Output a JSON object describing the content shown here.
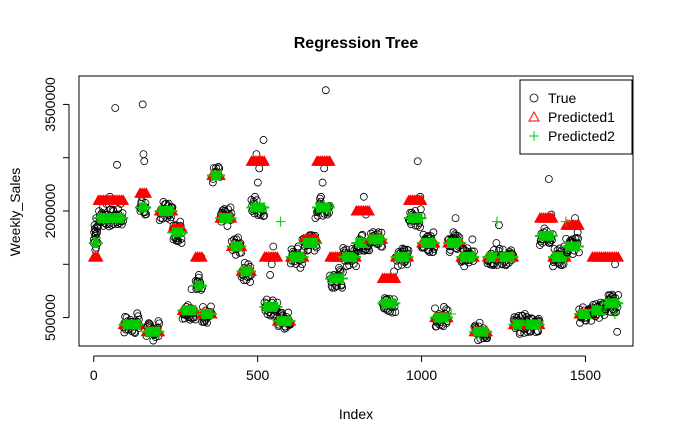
{
  "chart_data": {
    "type": "scatter",
    "title": "Regression Tree",
    "xlabel": "Index",
    "ylabel": "Weekly_Sales",
    "xlim": [
      -45,
      1645
    ],
    "ylim": [
      100000,
      3900000
    ],
    "x_ticks": [
      0,
      500,
      1000,
      1500
    ],
    "x_tick_labels": [
      "0",
      "500",
      "1000",
      "1500"
    ],
    "y_ticks": [
      500000,
      2000000,
      3500000
    ],
    "y_tick_labels": [
      "500000",
      "2000000",
      "3500000"
    ],
    "y_minor_ticks": [
      1250000,
      2750000
    ],
    "grid": false,
    "legend": {
      "position": "top-right",
      "entries": [
        {
          "label": "True",
          "symbol": "circle",
          "color": "#000000"
        },
        {
          "label": "Predicted1",
          "symbol": "triangle",
          "color": "#ff0000"
        },
        {
          "label": "Predicted2",
          "symbol": "plus",
          "color": "#00cc00"
        }
      ]
    },
    "segments": [
      {
        "x": [
          0,
          12
        ],
        "pred1": 1350000,
        "pred2": 1550000,
        "true": [
          1600000,
          1700000,
          1800000,
          1750000,
          1650000,
          1720000,
          1680000,
          1900000,
          1620000,
          1780000,
          1700000,
          1760000
        ]
      },
      {
        "x": [
          14,
          90
        ],
        "pred1": 2150000,
        "pred2": 1900000,
        "true": [
          1850000,
          1950000,
          2050000,
          1900000,
          2100000,
          1950000,
          2200000,
          1880000,
          2000000,
          3450000,
          2650000,
          1950000,
          2100000,
          1900000
        ]
      },
      {
        "x": [
          91,
          140
        ],
        "pred1": 400000,
        "pred2": 400000,
        "true": [
          420000,
          380000,
          450000,
          430000,
          390000,
          440000,
          410000,
          400000,
          560000,
          470000
        ]
      },
      {
        "x": [
          141,
          160
        ],
        "pred1": 2250000,
        "pred2": 2050000,
        "true": [
          2000000,
          2100000,
          2200000,
          3500000,
          2800000,
          2700000,
          1950000,
          2050000
        ]
      },
      {
        "x": [
          161,
          200
        ],
        "pred1": 300000,
        "pred2": 300000,
        "true": [
          280000,
          310000,
          320000,
          290000,
          330000,
          300000,
          450000
        ]
      },
      {
        "x": [
          201,
          240
        ],
        "pred1": 2000000,
        "pred2": 2000000,
        "true": [
          1900000,
          2000000,
          2100000,
          1950000,
          2050000
        ]
      },
      {
        "x": [
          241,
          270
        ],
        "pred1": 1750000,
        "pred2": 1700000,
        "true": [
          1600000,
          1750000,
          1800000,
          1650000,
          1700000,
          1850000,
          1550000
        ]
      },
      {
        "x": [
          271,
          310
        ],
        "pred1": 600000,
        "pred2": 600000,
        "true": [
          550000,
          650000,
          600000,
          900000,
          500000
        ]
      },
      {
        "x": [
          311,
          330
        ],
        "pred1": 1350000,
        "pred2": 950000,
        "true": [
          900000,
          1000000,
          1100000,
          950000,
          1350000
        ]
      },
      {
        "x": [
          331,
          360
        ],
        "pred1": 550000,
        "pred2": 550000,
        "true": [
          500000,
          600000,
          550000,
          580000
        ]
      },
      {
        "x": [
          361,
          385
        ],
        "pred1": 2500000,
        "pred2": 2500000,
        "true": [
          2450000,
          2550000,
          2500000,
          2600000
        ]
      },
      {
        "x": [
          386,
          420
        ],
        "pred1": 1900000,
        "pred2": 1900000,
        "true": [
          1850000,
          1950000,
          2000000,
          1880000,
          1920000,
          2050000
        ]
      },
      {
        "x": [
          421,
          450
        ],
        "pred1": 1500000,
        "pred2": 1500000,
        "true": [
          1450000,
          1550000,
          1600000,
          1480000,
          1520000
        ]
      },
      {
        "x": [
          451,
          480
        ],
        "pred1": 1150000,
        "pred2": 1150000,
        "true": [
          1100000,
          1200000,
          1150000,
          1250000,
          1000000
        ]
      },
      {
        "x": [
          481,
          520
        ],
        "pred1": 2700000,
        "pred2": 2050000,
        "true": [
          2000000,
          2100000,
          2200000,
          2800000,
          2400000,
          2600000,
          1950000,
          2050000,
          3000000
        ]
      },
      {
        "x": [
          521,
          560
        ],
        "pred1": 1350000,
        "pred2": 650000,
        "true": [
          600000,
          700000,
          650000,
          1100000,
          1250000,
          1500000,
          550000,
          620000
        ]
      },
      {
        "x": [
          561,
          600
        ],
        "pred1": 450000,
        "pred2": 450000,
        "true": [
          400000,
          500000,
          450000,
          480000,
          420000
        ]
      },
      {
        "x": [
          601,
          640
        ],
        "pred1": 1350000,
        "pred2": 1350000,
        "true": [
          1300000,
          1400000,
          1350000,
          1500000,
          1200000,
          1600000
        ]
      },
      {
        "x": [
          641,
          680
        ],
        "pred1": 1600000,
        "pred2": 1550000,
        "true": [
          1500000,
          1600000,
          1650000,
          1550000,
          1900000
        ]
      },
      {
        "x": [
          681,
          720
        ],
        "pred1": 2700000,
        "pred2": 2050000,
        "true": [
          2000000,
          2100000,
          2200000,
          2400000,
          2600000,
          3700000,
          1950000,
          2050000
        ]
      },
      {
        "x": [
          721,
          760
        ],
        "pred1": 1350000,
        "pred2": 1050000,
        "true": [
          1000000,
          1100000,
          1050000,
          1200000,
          950000
        ]
      },
      {
        "x": [
          761,
          800
        ],
        "pred1": 1350000,
        "pred2": 1350000,
        "true": [
          1300000,
          1400000,
          1350000,
          1450000
        ]
      },
      {
        "x": [
          801,
          840
        ],
        "pred1": 2000000,
        "pred2": 1550000,
        "true": [
          1500000,
          1600000,
          1650000,
          2200000,
          1950000,
          1550000
        ]
      },
      {
        "x": [
          841,
          880
        ],
        "pred1": 1600000,
        "pred2": 1600000,
        "true": [
          1550000,
          1650000,
          1600000,
          1700000,
          1500000
        ]
      },
      {
        "x": [
          881,
          920
        ],
        "pred1": 1050000,
        "pred2": 700000,
        "true": [
          650000,
          750000,
          700000,
          1050000,
          1150000
        ]
      },
      {
        "x": [
          921,
          960
        ],
        "pred1": 1350000,
        "pred2": 1350000,
        "true": [
          1300000,
          1400000,
          1350000,
          1450000,
          1250000
        ]
      },
      {
        "x": [
          961,
          1000
        ],
        "pred1": 2150000,
        "pred2": 1900000,
        "true": [
          1850000,
          1950000,
          2000000,
          2700000,
          2200000
        ]
      },
      {
        "x": [
          1001,
          1040
        ],
        "pred1": 1550000,
        "pred2": 1550000,
        "true": [
          1500000,
          1600000,
          1650000,
          1550000,
          1700000
        ]
      },
      {
        "x": [
          1041,
          1080
        ],
        "pred1": 500000,
        "pred2": 500000,
        "true": [
          450000,
          550000,
          500000,
          650000,
          420000
        ]
      },
      {
        "x": [
          1081,
          1120
        ],
        "pred1": 1550000,
        "pred2": 1550000,
        "true": [
          1500000,
          1600000,
          1700000,
          1900000,
          1650000,
          1550000
        ]
      },
      {
        "x": [
          1121,
          1160
        ],
        "pred1": 1350000,
        "pred2": 1350000,
        "true": [
          1300000,
          1400000,
          1350000,
          1600000
        ]
      },
      {
        "x": [
          1161,
          1200
        ],
        "pred1": 300000,
        "pred2": 300000,
        "true": [
          280000,
          320000,
          300000,
          350000,
          260000
        ]
      },
      {
        "x": [
          1201,
          1240
        ],
        "pred1": 1350000,
        "pred2": 1350000,
        "true": [
          1300000,
          1400000,
          1450000,
          1550000,
          1800000
        ]
      },
      {
        "x": [
          1241,
          1280
        ],
        "pred1": 1350000,
        "pred2": 1350000,
        "true": [
          1250000,
          1300000,
          1350000,
          1400000
        ]
      },
      {
        "x": [
          1281,
          1320
        ],
        "pred1": 400000,
        "pred2": 400000,
        "true": [
          350000,
          450000,
          400000,
          550000
        ]
      },
      {
        "x": [
          1321,
          1360
        ],
        "pred1": 400000,
        "pred2": 400000,
        "true": [
          380000,
          420000,
          400000,
          460000
        ]
      },
      {
        "x": [
          1361,
          1400
        ],
        "pred1": 1900000,
        "pred2": 1650000,
        "true": [
          1600000,
          1700000,
          1650000,
          2450000,
          1950000
        ]
      },
      {
        "x": [
          1401,
          1440
        ],
        "pred1": 1350000,
        "pred2": 1350000,
        "true": [
          1300000,
          1400000,
          1350000,
          1500000
        ]
      },
      {
        "x": [
          1441,
          1480
        ],
        "pred1": 1800000,
        "pred2": 1500000,
        "true": [
          1450000,
          1550000,
          1600000,
          1900000,
          1700000
        ]
      },
      {
        "x": [
          1481,
          1520
        ],
        "pred1": 550000,
        "pred2": 550000,
        "true": [
          500000,
          600000,
          550000,
          620000
        ]
      },
      {
        "x": [
          1521,
          1560
        ],
        "pred1": 1350000,
        "pred2": 600000,
        "true": [
          550000,
          650000,
          600000,
          700000
        ]
      },
      {
        "x": [
          1561,
          1600
        ],
        "pred1": 1350000,
        "pred2": 700000,
        "true": [
          650000,
          750000,
          700000,
          800000,
          1250000,
          300000
        ]
      }
    ]
  }
}
